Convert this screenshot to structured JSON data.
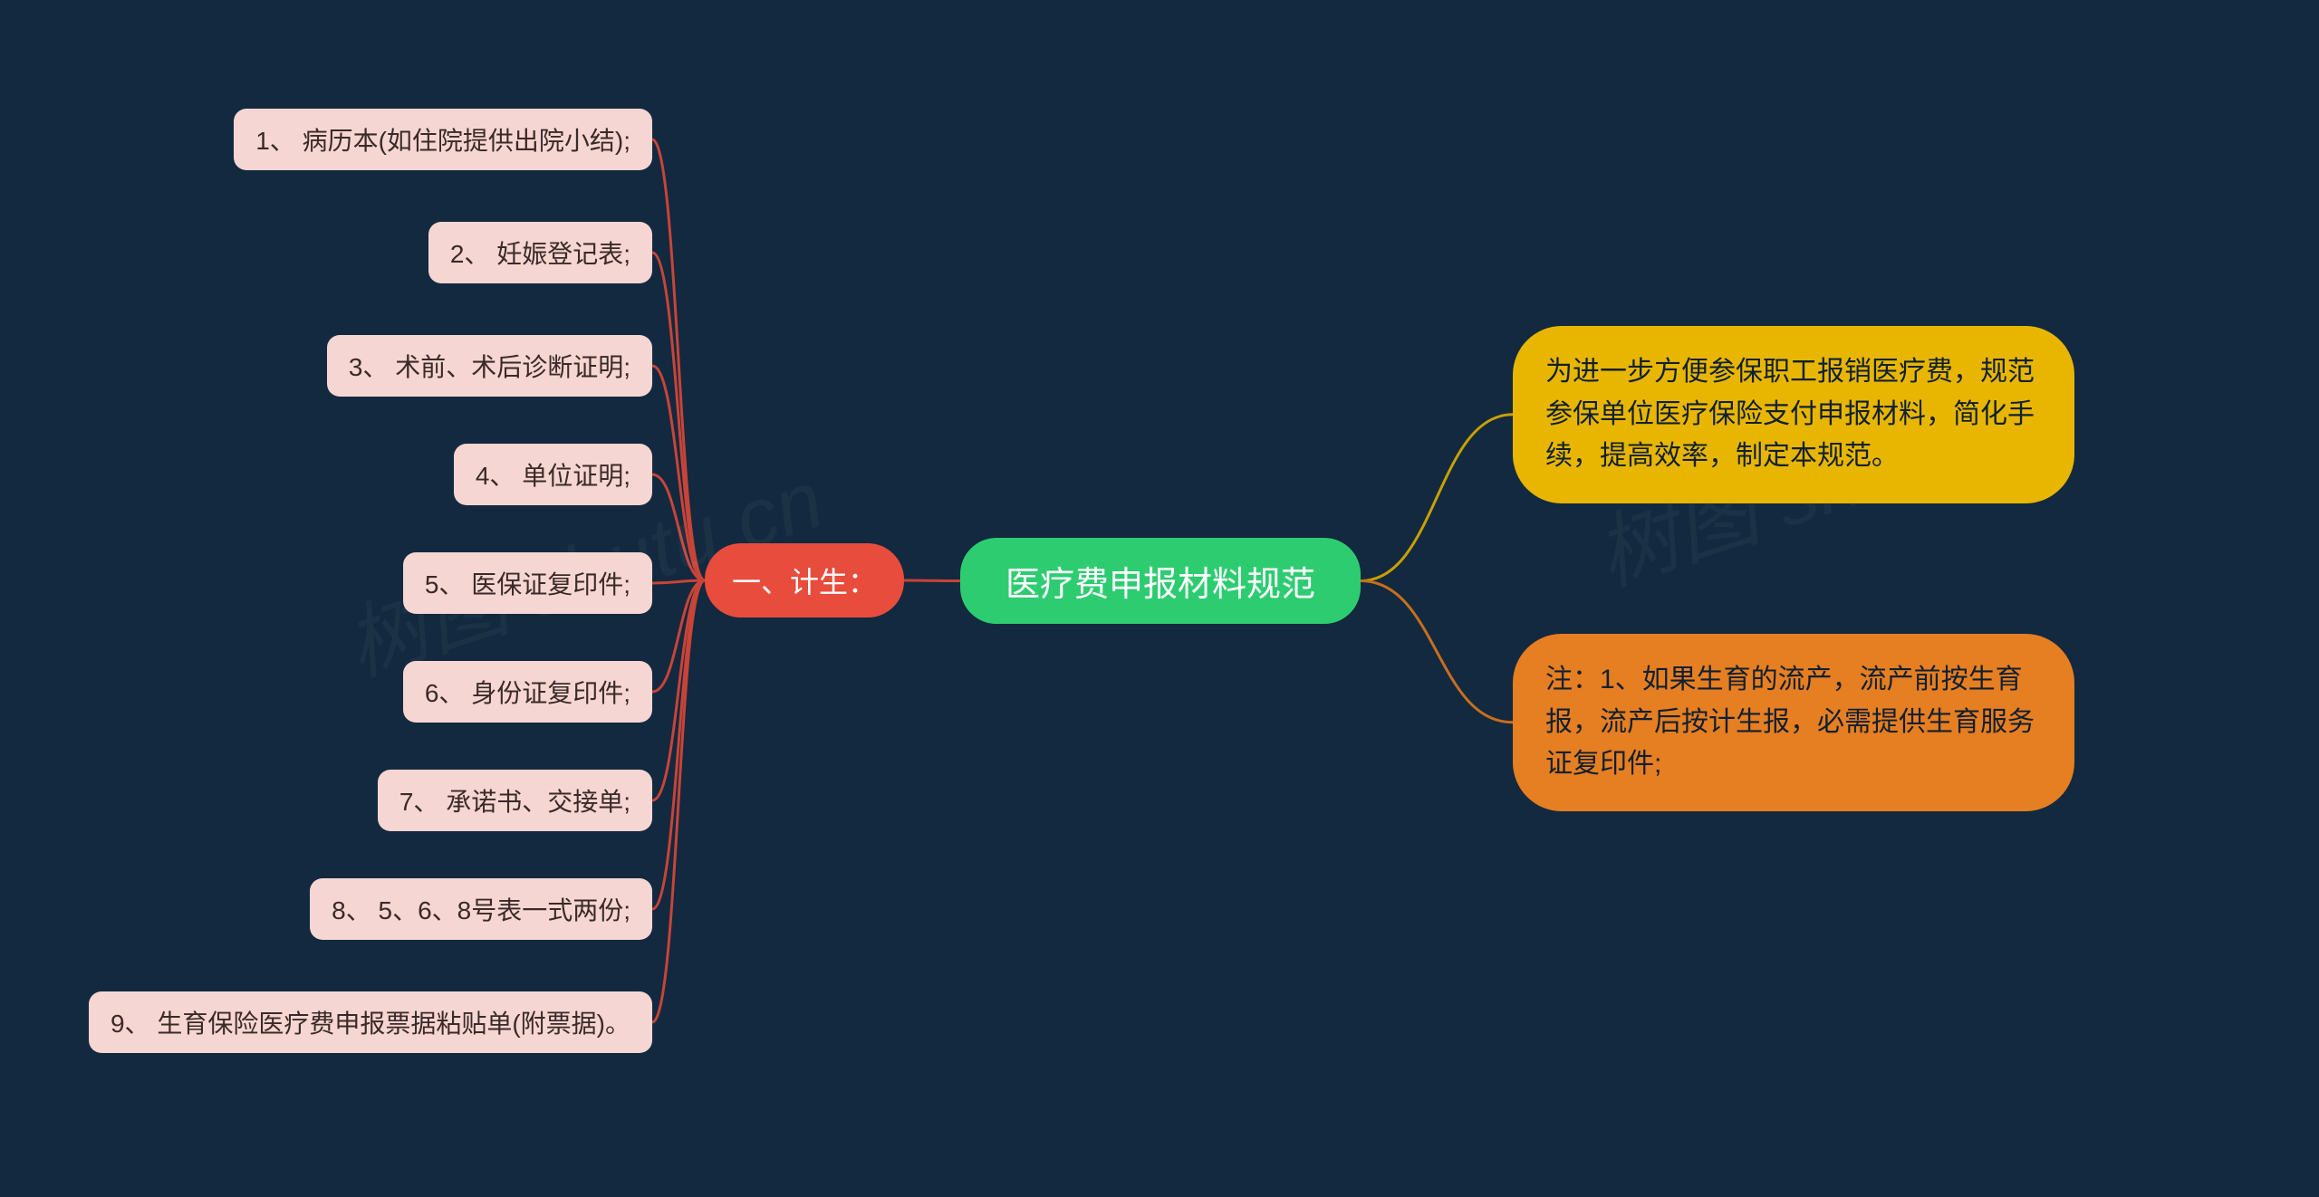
{
  "background_color": "#12293f",
  "watermark_text": "树图 shutu.cn",
  "watermark_color": "rgba(255,255,255,0.04)",
  "center": {
    "label": "医疗费申报材料规范",
    "bg": "#2ecc71",
    "fg": "#ffffff",
    "fontsize": 38
  },
  "left_branch": {
    "label": "一、计生：",
    "bg": "#e74c3c",
    "fg": "#ffffff",
    "fontsize": 32,
    "connector_color": "#c84438",
    "items": [
      {
        "label": "1、 病历本(如住院提供出院小结);"
      },
      {
        "label": "2、 妊娠登记表;"
      },
      {
        "label": "3、 术前、术后诊断证明;"
      },
      {
        "label": "4、 单位证明;"
      },
      {
        "label": "5、 医保证复印件;"
      },
      {
        "label": "6、 身份证复印件;"
      },
      {
        "label": "7、 承诺书、交接单;"
      },
      {
        "label": "8、 5、6、8号表一式两份;"
      },
      {
        "label": "9、 生育保险医疗费申报票据粘贴单(附票据)。"
      }
    ],
    "item_bg": "#f6d6d2",
    "item_fg": "#3a2a28",
    "item_fontsize": 28
  },
  "right_branches": [
    {
      "label": "为进一步方便参保职工报销医疗费，规范参保单位医疗保险支付申报材料，简化手续，提高效率，制定本规范。",
      "bg": "#e8b600",
      "fg": "#102030",
      "connector_color": "#c8a000"
    },
    {
      "label": "注：1、如果生育的流产，流产前按生育报，流产后按计生报，必需提供生育服务证复印件;",
      "bg": "#e67e22",
      "fg": "#102030",
      "connector_color": "#c86e1c"
    }
  ]
}
